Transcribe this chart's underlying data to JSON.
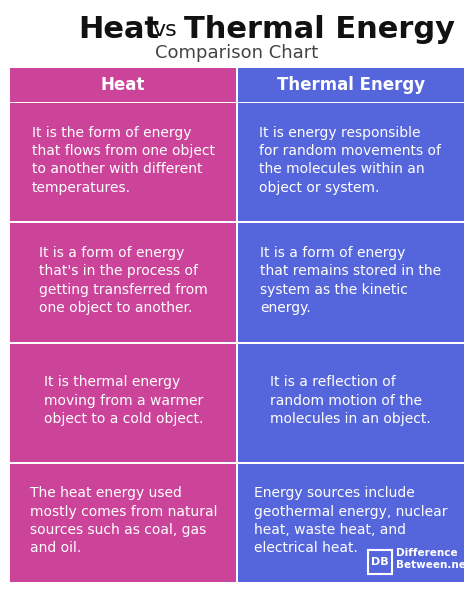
{
  "title_part1": "Heat",
  "title_vs": " vs ",
  "title_part2": "Thermal Energy",
  "subtitle": "Comparison Chart",
  "col1_header": "Heat",
  "col2_header": "Thermal Energy",
  "col1_color": "#cc4499",
  "col2_color": "#5566dd",
  "header_text_color": "#ffffff",
  "cell_text_color": "#ffffff",
  "bg_color": "#ffffff",
  "divider_color": "#ffffff",
  "rows": [
    {
      "col1": "It is the form of energy that flows from one object to another with different temperatures.",
      "col2": "It is energy responsible for random movements of the molecules within an object or system."
    },
    {
      "col1": "It is a form of energy that's in the process of getting transferred from one object to another.",
      "col2": "It is a form of energy that remains stored in the system as the kinetic energy."
    },
    {
      "col1": "It is thermal energy moving from a warmer object to a cold object.",
      "col2": "It is a reflection of random motion of the molecules in an object."
    },
    {
      "col1": "The heat energy used mostly comes from natural sources such as coal, gas and oil.",
      "col2": "Energy sources include geothermal energy, nuclear heat, waste heat, and electrical heat."
    }
  ],
  "logo_text1": "DB",
  "logo_text2": "Difference\nBetween.net",
  "title_fontsize": 22,
  "subtitle_fontsize": 13,
  "header_fontsize": 12,
  "cell_fontsize": 10
}
